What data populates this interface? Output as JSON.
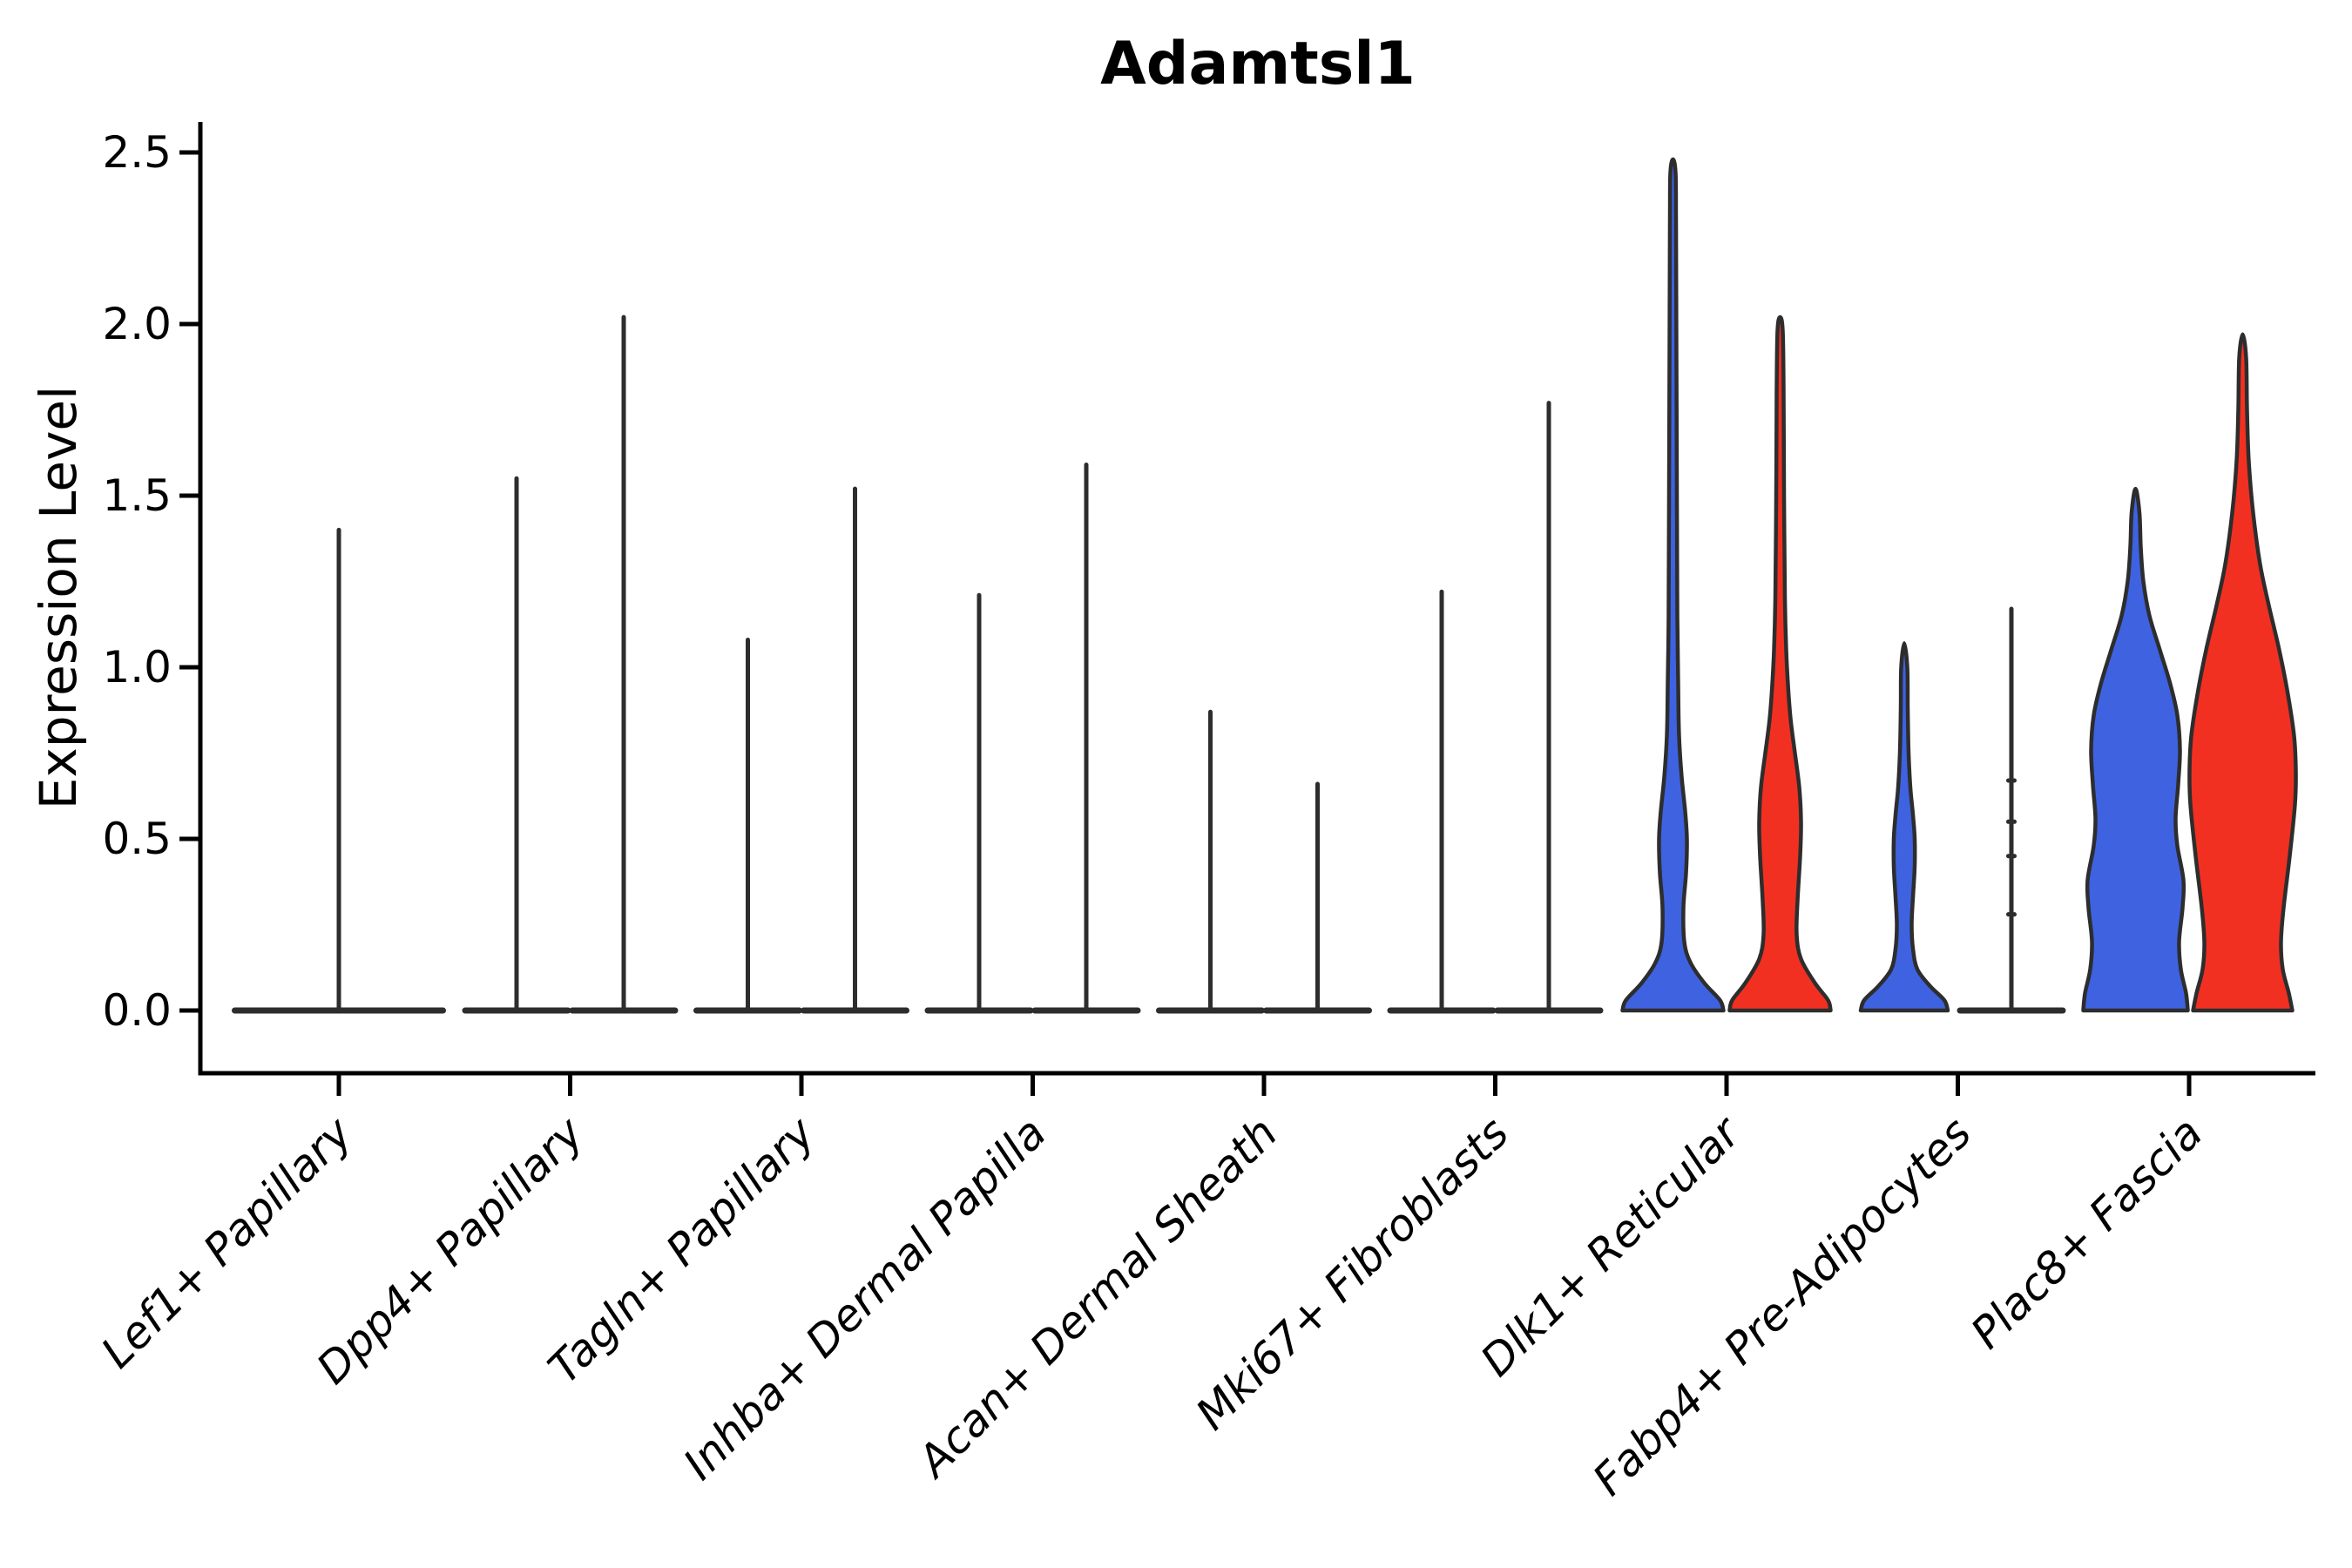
{
  "title": "Adamtsl1",
  "y_axis": {
    "label": "Expression Level",
    "tick_labels": [
      "0.0",
      "0.5",
      "1.0",
      "1.5",
      "2.0",
      "2.5"
    ],
    "tick_values": [
      0.0,
      0.5,
      1.0,
      1.5,
      2.0,
      2.5
    ]
  },
  "x_axis": {
    "categories": [
      "Lef1+ Papillary",
      "Dpp4+ Papillary",
      "Tagln+ Papillary",
      "Inhba+ Dermal Papilla",
      "Acan+ Dermal Sheath",
      "Mki67+ Fibroblasts",
      "Dlk1+ Reticular",
      "Fabp4+ Pre-Adipocytes",
      "Plac8+ Fascia"
    ]
  },
  "colors": {
    "blue_fill": "#3E62E0",
    "red_fill": "#F23022",
    "outline": "#2D2D2D",
    "axis": "#000000"
  },
  "chart_data": {
    "type": "violin",
    "title": "Adamtsl1",
    "xlabel": "",
    "ylabel": "Expression Level",
    "ylim": [
      0,
      2.6
    ],
    "yticks": [
      0.0,
      0.5,
      1.0,
      1.5,
      2.0,
      2.5
    ],
    "ytick_labels": [
      "0.0",
      "0.5",
      "1.0",
      "1.5",
      "2.0",
      "2.5"
    ],
    "grid": false,
    "legend": "none",
    "categories": [
      "Lef1+ Papillary",
      "Dpp4+ Papillary",
      "Tagln+ Papillary",
      "Inhba+ Dermal Papilla",
      "Acan+ Dermal Sheath",
      "Mki67+ Fibroblasts",
      "Dlk1+ Reticular",
      "Fabp4+ Pre-Adipocytes",
      "Plac8+ Fascia"
    ],
    "series": [
      {
        "name": "blue",
        "color": "#3E62E0",
        "max_expression": [
          1.4,
          1.55,
          1.08,
          1.21,
          0.87,
          1.22,
          2.48,
          1.07,
          1.52
        ]
      },
      {
        "name": "red",
        "color": "#F23022",
        "max_expression": [
          null,
          2.02,
          1.52,
          1.59,
          0.66,
          1.77,
          2.02,
          1.17,
          1.97
        ]
      }
    ],
    "violins": [
      {
        "category": "Lef1+ Papillary",
        "items": [
          {
            "group": "blue",
            "style": "spike",
            "offset": 0,
            "max": 1.4,
            "base_halfwidth": 122
          }
        ]
      },
      {
        "category": "Dpp4+ Papillary",
        "items": [
          {
            "group": "blue",
            "style": "spike",
            "offset": -1,
            "max": 1.55
          },
          {
            "group": "red",
            "style": "spike",
            "offset": 1,
            "max": 2.02
          }
        ]
      },
      {
        "category": "Tagln+ Papillary",
        "items": [
          {
            "group": "blue",
            "style": "spike",
            "offset": -1,
            "max": 1.08
          },
          {
            "group": "red",
            "style": "spike",
            "offset": 1,
            "max": 1.52
          }
        ]
      },
      {
        "category": "Inhba+ Dermal Papilla",
        "items": [
          {
            "group": "blue",
            "style": "spike",
            "offset": -1,
            "max": 1.21
          },
          {
            "group": "red",
            "style": "spike",
            "offset": 1,
            "max": 1.59
          }
        ]
      },
      {
        "category": "Acan+ Dermal Sheath",
        "items": [
          {
            "group": "blue",
            "style": "spike",
            "offset": -1,
            "max": 0.87
          },
          {
            "group": "red",
            "style": "spike",
            "offset": 1,
            "max": 0.66
          }
        ]
      },
      {
        "category": "Mki67+ Fibroblasts",
        "items": [
          {
            "group": "blue",
            "style": "spike",
            "offset": -1,
            "max": 1.22
          },
          {
            "group": "red",
            "style": "spike",
            "offset": 1,
            "max": 1.77
          }
        ]
      },
      {
        "category": "Dlk1+ Reticular",
        "items": [
          {
            "group": "blue",
            "style": "violin",
            "offset": -1,
            "max": 2.48,
            "profile": [
              [
                0,
                58
              ],
              [
                0.03,
                54
              ],
              [
                0.08,
                36
              ],
              [
                0.14,
                20
              ],
              [
                0.2,
                13
              ],
              [
                0.3,
                12
              ],
              [
                0.4,
                15
              ],
              [
                0.5,
                16
              ],
              [
                0.58,
                14
              ],
              [
                0.68,
                10
              ],
              [
                0.8,
                7
              ],
              [
                0.95,
                6
              ],
              [
                1.15,
                5
              ],
              [
                1.5,
                4.5
              ],
              [
                1.9,
                4
              ],
              [
                2.3,
                3.5
              ],
              [
                2.44,
                3
              ],
              [
                2.48,
                0
              ]
            ]
          },
          {
            "group": "red",
            "style": "violin",
            "offset": 1,
            "max": 2.02,
            "profile": [
              [
                0,
                58
              ],
              [
                0.03,
                55
              ],
              [
                0.08,
                40
              ],
              [
                0.15,
                24
              ],
              [
                0.22,
                19
              ],
              [
                0.32,
                20
              ],
              [
                0.45,
                23
              ],
              [
                0.55,
                24
              ],
              [
                0.65,
                22
              ],
              [
                0.75,
                17
              ],
              [
                0.85,
                12
              ],
              [
                0.95,
                9
              ],
              [
                1.05,
                7
              ],
              [
                1.2,
                5.5
              ],
              [
                1.5,
                4.5
              ],
              [
                1.8,
                4
              ],
              [
                1.98,
                3
              ],
              [
                2.02,
                0
              ]
            ]
          }
        ]
      },
      {
        "category": "Fabp4+ Pre-Adipocytes",
        "items": [
          {
            "group": "blue",
            "style": "violin",
            "offset": -1,
            "max": 1.07,
            "profile": [
              [
                0,
                50
              ],
              [
                0.03,
                46
              ],
              [
                0.07,
                30
              ],
              [
                0.12,
                15
              ],
              [
                0.18,
                10
              ],
              [
                0.25,
                8.5
              ],
              [
                0.33,
                10
              ],
              [
                0.42,
                12
              ],
              [
                0.5,
                12
              ],
              [
                0.57,
                10
              ],
              [
                0.65,
                7
              ],
              [
                0.75,
                5
              ],
              [
                0.88,
                4
              ],
              [
                1.0,
                3.5
              ],
              [
                1.07,
                0
              ]
            ]
          },
          {
            "group": "red",
            "style": "line",
            "offset": 1,
            "max": 1.17,
            "nubs": [
              0.28,
              0.45,
              0.55,
              0.67
            ]
          }
        ]
      },
      {
        "category": "Plac8+ Fascia",
        "items": [
          {
            "group": "blue",
            "style": "violin",
            "offset": -1,
            "max": 1.52,
            "profile": [
              [
                0,
                60
              ],
              [
                0.05,
                58
              ],
              [
                0.12,
                52
              ],
              [
                0.2,
                50
              ],
              [
                0.3,
                54
              ],
              [
                0.38,
                55
              ],
              [
                0.48,
                48
              ],
              [
                0.56,
                46
              ],
              [
                0.66,
                49
              ],
              [
                0.76,
                51
              ],
              [
                0.86,
                48
              ],
              [
                0.95,
                40
              ],
              [
                1.05,
                28
              ],
              [
                1.15,
                16
              ],
              [
                1.25,
                9
              ],
              [
                1.35,
                6
              ],
              [
                1.45,
                4.5
              ],
              [
                1.52,
                0
              ]
            ]
          },
          {
            "group": "red",
            "style": "violin",
            "offset": 1,
            "max": 1.97,
            "profile": [
              [
                0,
                57
              ],
              [
                0.05,
                53
              ],
              [
                0.12,
                46
              ],
              [
                0.2,
                44
              ],
              [
                0.3,
                47
              ],
              [
                0.45,
                54
              ],
              [
                0.6,
                60
              ],
              [
                0.7,
                61
              ],
              [
                0.8,
                59
              ],
              [
                0.92,
                52
              ],
              [
                1.05,
                42
              ],
              [
                1.18,
                30
              ],
              [
                1.3,
                20
              ],
              [
                1.45,
                12
              ],
              [
                1.6,
                7
              ],
              [
                1.75,
                5
              ],
              [
                1.9,
                4
              ],
              [
                1.97,
                0
              ]
            ]
          }
        ]
      }
    ]
  }
}
